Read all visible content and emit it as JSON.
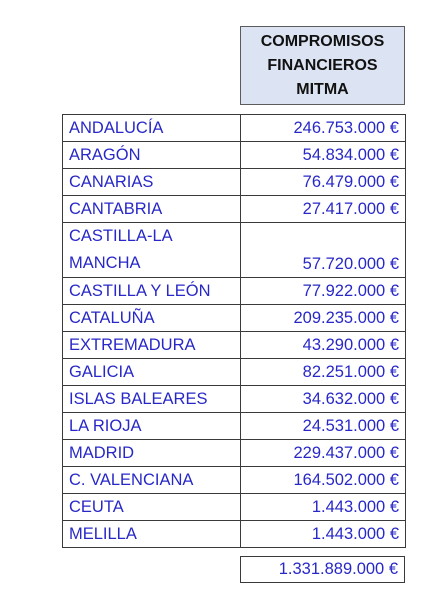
{
  "header": {
    "line1": "COMPROMISOS",
    "line2": "FINANCIEROS",
    "line3": "MITMA"
  },
  "rows": [
    {
      "region": "ANDALUCÍA",
      "amount": "246.753.000 €"
    },
    {
      "region": "ARAGÓN",
      "amount": "54.834.000 €"
    },
    {
      "region": "CANARIAS",
      "amount": "76.479.000 €"
    },
    {
      "region": "CANTABRIA",
      "amount": "27.417.000 €"
    },
    {
      "region": "CASTILLA-LA MANCHA",
      "amount": "57.720.000 €"
    },
    {
      "region": "CASTILLA Y LEÓN",
      "amount": "77.922.000 €"
    },
    {
      "region": "CATALUÑA",
      "amount": "209.235.000 €"
    },
    {
      "region": "EXTREMADURA",
      "amount": "43.290.000 €"
    },
    {
      "region": "GALICIA",
      "amount": "82.251.000 €"
    },
    {
      "region": "ISLAS BALEARES",
      "amount": "34.632.000 €"
    },
    {
      "region": "LA RIOJA",
      "amount": "24.531.000 €"
    },
    {
      "region": "MADRID",
      "amount": "229.437.000 €"
    },
    {
      "region": "C. VALENCIANA",
      "amount": "164.502.000 €"
    },
    {
      "region": "CEUTA",
      "amount": "1.443.000 €"
    },
    {
      "region": "MELILLA",
      "amount": "1.443.000 €"
    }
  ],
  "total": "1.331.889.000 €",
  "colors": {
    "header_fill": "#dce3f2",
    "text_blue": "#2828c8"
  }
}
